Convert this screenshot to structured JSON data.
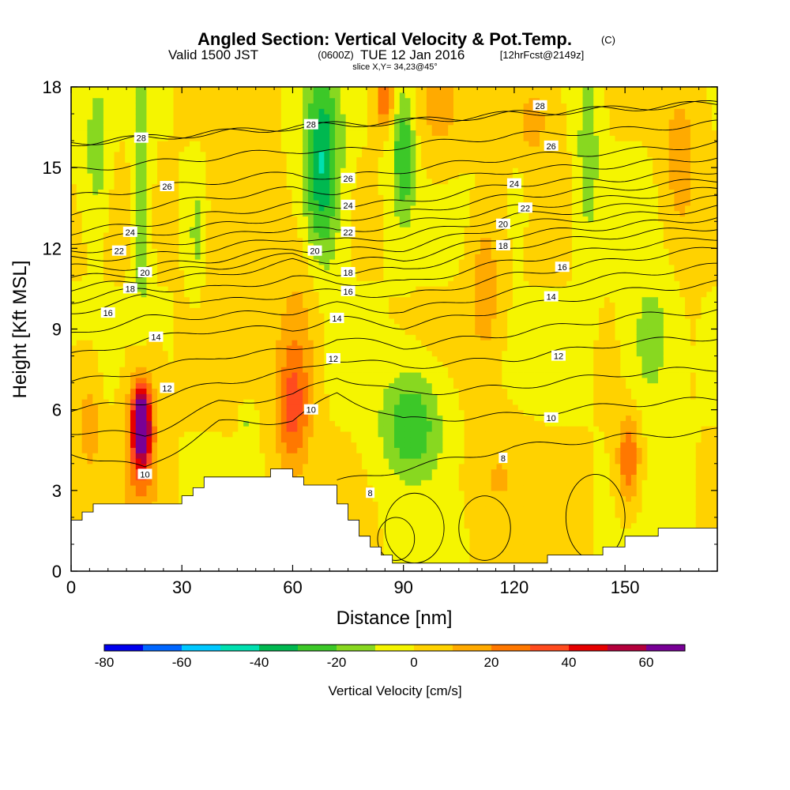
{
  "titles": {
    "main": "Angled Section: Vertical Velocity & Pot.Temp.",
    "main_unit": "(C)",
    "valid_prefix": "Valid 1500 JST",
    "valid_utc": "(0600Z)",
    "valid_date": "TUE 12 Jan 2016",
    "forecast": "[12hrFcst@2149z]",
    "slice": "slice X,Y= 34,23@45°"
  },
  "chart_data": {
    "type": "heatmap",
    "title": "Angled Section: Vertical Velocity & Pot.Temp. (C)",
    "xlabel": "Distance [nm]",
    "ylabel": "Height [Kft MSL]",
    "xlim": [
      0,
      175
    ],
    "ylim": [
      0,
      18
    ],
    "x_ticks": [
      0,
      30,
      60,
      90,
      120,
      150
    ],
    "y_ticks": [
      0,
      3,
      6,
      9,
      12,
      15,
      18
    ],
    "x_tick_labels": [
      "0",
      "30",
      "60",
      "90",
      "120",
      "150"
    ],
    "y_tick_labels": [
      "0",
      "3",
      "6",
      "9",
      "12",
      "15",
      "18"
    ],
    "grid": false,
    "colorbar": {
      "title": "Vertical Velocity [cm/s]",
      "levels": [
        -80,
        -70,
        -60,
        -50,
        -40,
        -30,
        -20,
        -10,
        0,
        10,
        20,
        30,
        40,
        50,
        60,
        70
      ],
      "colors": [
        "#0000ee",
        "#0066ff",
        "#00c8ff",
        "#00e0b0",
        "#00b850",
        "#3cc828",
        "#88d820",
        "#f5f500",
        "#ffd200",
        "#ffaa00",
        "#ff7800",
        "#ff4b1e",
        "#e60000",
        "#b4003c",
        "#780096"
      ],
      "tick_labels": [
        "-80",
        "-60",
        "-40",
        "-20",
        "0",
        "20",
        "40",
        "60"
      ],
      "tick_values": [
        -80,
        -60,
        -40,
        -20,
        0,
        20,
        40,
        60
      ]
    },
    "terrain": {
      "x": [
        0,
        3,
        6,
        9,
        12,
        15,
        18,
        21,
        24,
        27,
        30,
        33,
        36,
        39,
        42,
        45,
        48,
        51,
        54,
        57,
        60,
        63,
        66,
        69,
        72,
        75,
        78,
        81,
        84,
        87,
        90,
        93,
        96,
        99,
        102,
        105,
        108,
        111,
        114,
        117,
        120,
        123,
        126,
        129,
        132,
        135,
        138,
        141,
        144,
        147,
        150,
        153,
        156,
        159,
        162,
        165,
        168,
        171,
        175
      ],
      "y": [
        1.9,
        2.2,
        2.5,
        2.5,
        2.5,
        2.5,
        2.5,
        2.5,
        2.5,
        2.5,
        2.8,
        3.1,
        3.5,
        3.5,
        3.5,
        3.5,
        3.5,
        3.5,
        3.8,
        3.8,
        3.5,
        3.2,
        3.2,
        3.2,
        2.5,
        1.9,
        1.3,
        0.9,
        0.6,
        0.3,
        0.3,
        0.3,
        0.3,
        0.3,
        0.3,
        0.3,
        0.3,
        0.3,
        0.3,
        0.3,
        0.3,
        0.3,
        0.3,
        0.6,
        0.6,
        0.6,
        0.6,
        0.6,
        0.9,
        0.9,
        1.3,
        1.3,
        1.3,
        1.6,
        1.6,
        1.6,
        1.6,
        1.6,
        1.6
      ]
    },
    "vertical_velocity_features": [
      {
        "x": 19,
        "y": 5.5,
        "sx": 2.2,
        "sy": 1.3,
        "amp": 75
      },
      {
        "x": 19,
        "y": 4.8,
        "sx": 4.5,
        "sy": 2.8,
        "amp": 30
      },
      {
        "x": 60,
        "y": 6.0,
        "sx": 4.5,
        "sy": 2.2,
        "amp": 32
      },
      {
        "x": 62,
        "y": 9.0,
        "sx": 6.0,
        "sy": 3.0,
        "amp": 14
      },
      {
        "x": 151,
        "y": 4.2,
        "sx": 3.0,
        "sy": 1.6,
        "amp": 32
      },
      {
        "x": 85,
        "y": 17.5,
        "sx": 2.5,
        "sy": 1.0,
        "amp": 30
      },
      {
        "x": 112,
        "y": 10.5,
        "sx": 4.0,
        "sy": 2.5,
        "amp": 18
      },
      {
        "x": 5,
        "y": 5.5,
        "sx": 3.0,
        "sy": 2.0,
        "amp": 16
      },
      {
        "x": 165,
        "y": 15.0,
        "sx": 5.0,
        "sy": 3.0,
        "amp": 16
      },
      {
        "x": 125,
        "y": 17.0,
        "sx": 6.0,
        "sy": 2.0,
        "amp": 14
      },
      {
        "x": 100,
        "y": 17.0,
        "sx": 6.0,
        "sy": 2.0,
        "amp": 12
      },
      {
        "x": 45,
        "y": 12.0,
        "sx": 8.0,
        "sy": 4.0,
        "amp": 10
      },
      {
        "x": 115,
        "y": 3.5,
        "sx": 8.0,
        "sy": 2.0,
        "amp": 10
      },
      {
        "x": 7,
        "y": 15.5,
        "sx": 3.0,
        "sy": 2.5,
        "amp": -18
      },
      {
        "x": 19,
        "y": 14.0,
        "sx": 2.2,
        "sy": 4.5,
        "amp": -22
      },
      {
        "x": 34,
        "y": 12.5,
        "sx": 2.0,
        "sy": 2.0,
        "amp": -14
      },
      {
        "x": 68,
        "y": 15.0,
        "sx": 5.0,
        "sy": 3.5,
        "amp": -42
      },
      {
        "x": 90,
        "y": 15.5,
        "sx": 3.0,
        "sy": 2.5,
        "amp": -30
      },
      {
        "x": 92,
        "y": 5.5,
        "sx": 8.0,
        "sy": 2.0,
        "amp": -30
      },
      {
        "x": 140,
        "y": 15.5,
        "sx": 3.0,
        "sy": 3.5,
        "amp": -18
      },
      {
        "x": 157,
        "y": 8.5,
        "sx": 6.0,
        "sy": 2.5,
        "amp": -18
      },
      {
        "x": 48,
        "y": 5.5,
        "sx": 2.0,
        "sy": 0.8,
        "amp": -12
      },
      {
        "x": 121,
        "y": 13.5,
        "sx": 2.0,
        "sy": 1.5,
        "amp": -12
      }
    ],
    "potential_temperature_contours": {
      "levels": [
        8,
        9,
        10,
        11,
        12,
        13,
        14,
        15,
        16,
        17,
        18,
        19,
        20,
        21,
        22,
        23,
        24,
        25,
        26,
        27,
        28,
        29
      ],
      "labeled_levels": [
        8,
        10,
        12,
        14,
        16,
        18,
        20,
        22,
        24,
        26,
        28
      ]
    },
    "contour_labels": [
      {
        "text": "28",
        "x": 19,
        "y": 16.1
      },
      {
        "text": "26",
        "x": 26,
        "y": 14.3
      },
      {
        "text": "24",
        "x": 16,
        "y": 12.6
      },
      {
        "text": "22",
        "x": 13,
        "y": 11.9
      },
      {
        "text": "20",
        "x": 20,
        "y": 11.1
      },
      {
        "text": "18",
        "x": 16,
        "y": 10.5
      },
      {
        "text": "16",
        "x": 10,
        "y": 9.6
      },
      {
        "text": "14",
        "x": 23,
        "y": 8.7
      },
      {
        "text": "12",
        "x": 26,
        "y": 6.8
      },
      {
        "text": "10",
        "x": 20,
        "y": 3.6
      },
      {
        "text": "28",
        "x": 65,
        "y": 16.6
      },
      {
        "text": "26",
        "x": 75,
        "y": 14.6
      },
      {
        "text": "24",
        "x": 75,
        "y": 13.6
      },
      {
        "text": "22",
        "x": 75,
        "y": 12.6
      },
      {
        "text": "20",
        "x": 66,
        "y": 11.9
      },
      {
        "text": "18",
        "x": 75,
        "y": 11.1
      },
      {
        "text": "16",
        "x": 75,
        "y": 10.4
      },
      {
        "text": "14",
        "x": 72,
        "y": 9.4
      },
      {
        "text": "12",
        "x": 71,
        "y": 7.9
      },
      {
        "text": "10",
        "x": 65,
        "y": 6.0
      },
      {
        "text": "8",
        "x": 81,
        "y": 2.9
      },
      {
        "text": "28",
        "x": 127,
        "y": 17.3
      },
      {
        "text": "26",
        "x": 130,
        "y": 15.8
      },
      {
        "text": "24",
        "x": 120,
        "y": 14.4
      },
      {
        "text": "22",
        "x": 123,
        "y": 13.5
      },
      {
        "text": "20",
        "x": 117,
        "y": 12.9
      },
      {
        "text": "18",
        "x": 117,
        "y": 12.1
      },
      {
        "text": "16",
        "x": 133,
        "y": 11.3
      },
      {
        "text": "14",
        "x": 130,
        "y": 10.2
      },
      {
        "text": "12",
        "x": 132,
        "y": 8.0
      },
      {
        "text": "10",
        "x": 130,
        "y": 5.7
      },
      {
        "text": "8",
        "x": 117,
        "y": 4.2
      }
    ]
  }
}
